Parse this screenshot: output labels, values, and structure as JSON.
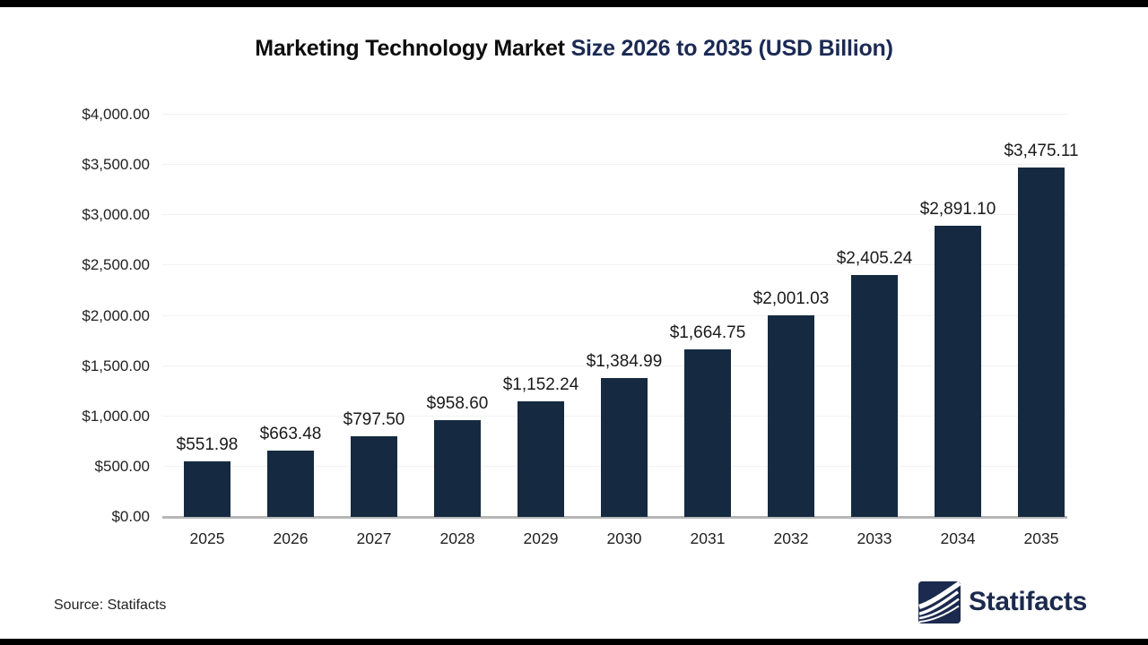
{
  "page": {
    "title_part_black": "Marketing Technology Market ",
    "title_part_navy": "Size 2026 to 2035 (USD Billion)",
    "source_note": "Source: Statifacts",
    "brand_name": "Statifacts"
  },
  "colors": {
    "bar": "#152a40",
    "title_navy": "#1b2a54",
    "logo_navy": "#1b2a4e",
    "gridline": "#f1f2f3",
    "axis_line": "#b7b7b7"
  },
  "chart_data": {
    "type": "bar",
    "title": "Marketing Technology Market Size 2026 to 2035 (USD Billion)",
    "xlabel": "",
    "ylabel": "",
    "units": "USD Billion",
    "categories": [
      "2025",
      "2026",
      "2027",
      "2028",
      "2029",
      "2030",
      "2031",
      "2032",
      "2033",
      "2034",
      "2035"
    ],
    "values": [
      551.98,
      663.48,
      797.5,
      958.6,
      1152.24,
      1384.99,
      1664.75,
      2001.03,
      2405.24,
      2891.1,
      3475.11
    ],
    "value_labels": [
      "$551.98",
      "$663.48",
      "$797.50",
      "$958.60",
      "$1,152.24",
      "$1,384.99",
      "$1,664.75",
      "$2,001.03",
      "$2,405.24",
      "$2,891.10",
      "$3,475.11"
    ],
    "ylim": [
      0,
      4000
    ],
    "ytick_values": [
      0,
      500,
      1000,
      1500,
      2000,
      2500,
      3000,
      3500,
      4000
    ],
    "ytick_labels": [
      "$0.00",
      "$500.00",
      "$1,000.00",
      "$1,500.00",
      "$2,000.00",
      "$2,500.00",
      "$3,000.00",
      "$3,500.00",
      "$4,000.00"
    ],
    "grid": true,
    "legend": "none",
    "source": "Statifacts"
  }
}
